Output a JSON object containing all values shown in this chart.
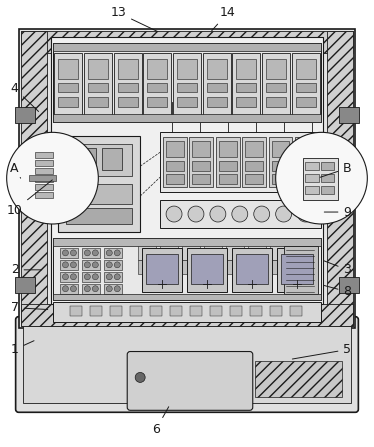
{
  "fig_width": 3.74,
  "fig_height": 4.47,
  "dpi": 100,
  "bg_color": "#ffffff",
  "lc": "#1a1a1a",
  "fc_outer": "#e8e8e8",
  "fc_hatch": "#d4d4d4",
  "fc_inner": "#f2f2f2",
  "fc_panel": "#ebebeb",
  "fc_breaker": "#c8c8c8",
  "fc_dark": "#999999",
  "fc_vfd": "#a0a0b8"
}
